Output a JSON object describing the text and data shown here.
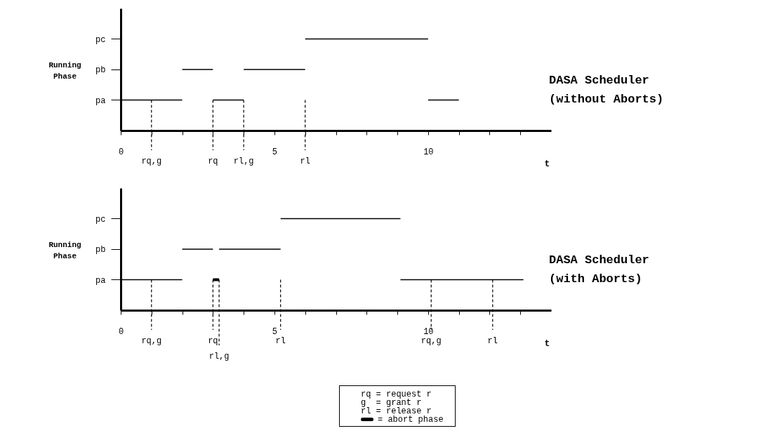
{
  "chart_data": [
    {
      "type": "bar",
      "orientation": "horizontal",
      "title": "DASA Scheduler",
      "subtitle": "(without Aborts)",
      "xlabel": "t",
      "ylabel": "Running Phase",
      "categories": [
        "pc",
        "pb",
        "pa"
      ],
      "xlim": [
        0,
        14
      ],
      "xticks": [
        0,
        {
          "value": 1,
          "label": null
        },
        {
          "value": 2,
          "label": null
        },
        {
          "value": 3,
          "label": null
        },
        {
          "value": 4,
          "label": null
        },
        5,
        {
          "value": 6,
          "label": null
        },
        {
          "value": 7,
          "label": null
        },
        {
          "value": 8,
          "label": null
        },
        {
          "value": 9,
          "label": null
        },
        10,
        {
          "value": 11,
          "label": null
        },
        {
          "value": 12,
          "label": null
        },
        {
          "value": 13,
          "label": null
        }
      ],
      "grid": false,
      "series": [
        {
          "color": "#000000",
          "base": [
            6,
            2,
            0
          ],
          "values": [
            4,
            1,
            2
          ]
        },
        {
          "color": "#000000",
          "base": [
            null,
            4,
            3
          ],
          "values": [
            null,
            2,
            1
          ]
        },
        {
          "color": "#000000",
          "base": [
            null,
            null,
            10
          ],
          "values": [
            null,
            null,
            1
          ]
        }
      ],
      "ref_lines": [
        {
          "axis": "x",
          "value": 1,
          "label": "rq,g",
          "line_style": "dashed"
        },
        {
          "axis": "x",
          "value": 3,
          "label": "rq",
          "line_style": "dashed"
        },
        {
          "axis": "x",
          "value": 4,
          "label": "rl,g",
          "line_style": "dashed"
        },
        {
          "axis": "x",
          "value": 6,
          "label": "rl",
          "line_style": "dashed"
        }
      ]
    },
    {
      "type": "bar",
      "orientation": "horizontal",
      "title": "DASA Scheduler",
      "subtitle": "(with Aborts)",
      "xlabel": "t",
      "ylabel": "Running Phase",
      "categories": [
        "pc",
        "pb",
        "pa"
      ],
      "xlim": [
        0,
        14
      ],
      "xticks": [
        0,
        {
          "value": 1,
          "label": null
        },
        {
          "value": 2,
          "label": null
        },
        {
          "value": 3,
          "label": null
        },
        {
          "value": 4,
          "label": null
        },
        5,
        {
          "value": 6,
          "label": null
        },
        {
          "value": 7,
          "label": null
        },
        {
          "value": 8,
          "label": null
        },
        {
          "value": 9,
          "label": null
        },
        10,
        {
          "value": 11,
          "label": null
        },
        {
          "value": 12,
          "label": null
        },
        {
          "value": 13,
          "label": null
        }
      ],
      "grid": false,
      "legend": "bottom",
      "series": [
        {
          "color": "#000000",
          "base": [
            5.2,
            2,
            0
          ],
          "values": [
            3.9,
            1,
            2
          ]
        },
        {
          "color": "#000000",
          "base": [
            null,
            3.2,
            9.1
          ],
          "values": [
            null,
            2,
            4
          ]
        },
        {
          "name": "= abort phase",
          "color": "#000000",
          "base": [
            null,
            null,
            3
          ],
          "values": [
            null,
            null,
            0.2
          ]
        }
      ],
      "ref_lines": [
        {
          "axis": "x",
          "value": 1,
          "label": "rq,g",
          "line_style": "dashed"
        },
        {
          "axis": "x",
          "value": 3,
          "label": "rq",
          "line_style": "dashed"
        },
        {
          "axis": "x",
          "value": 3.2,
          "label": "rl,g",
          "line_style": "dashed"
        },
        {
          "axis": "x",
          "value": 5.2,
          "label": "rl",
          "line_style": "dashed"
        },
        {
          "axis": "x",
          "value": 10.1,
          "label": "rq,g",
          "line_style": "dashed"
        },
        {
          "axis": "x",
          "value": 12.1,
          "label": "rl",
          "line_style": "dashed"
        }
      ],
      "annotations": [
        "rq = request r",
        "g  = grant r",
        "rl = release r"
      ]
    }
  ]
}
